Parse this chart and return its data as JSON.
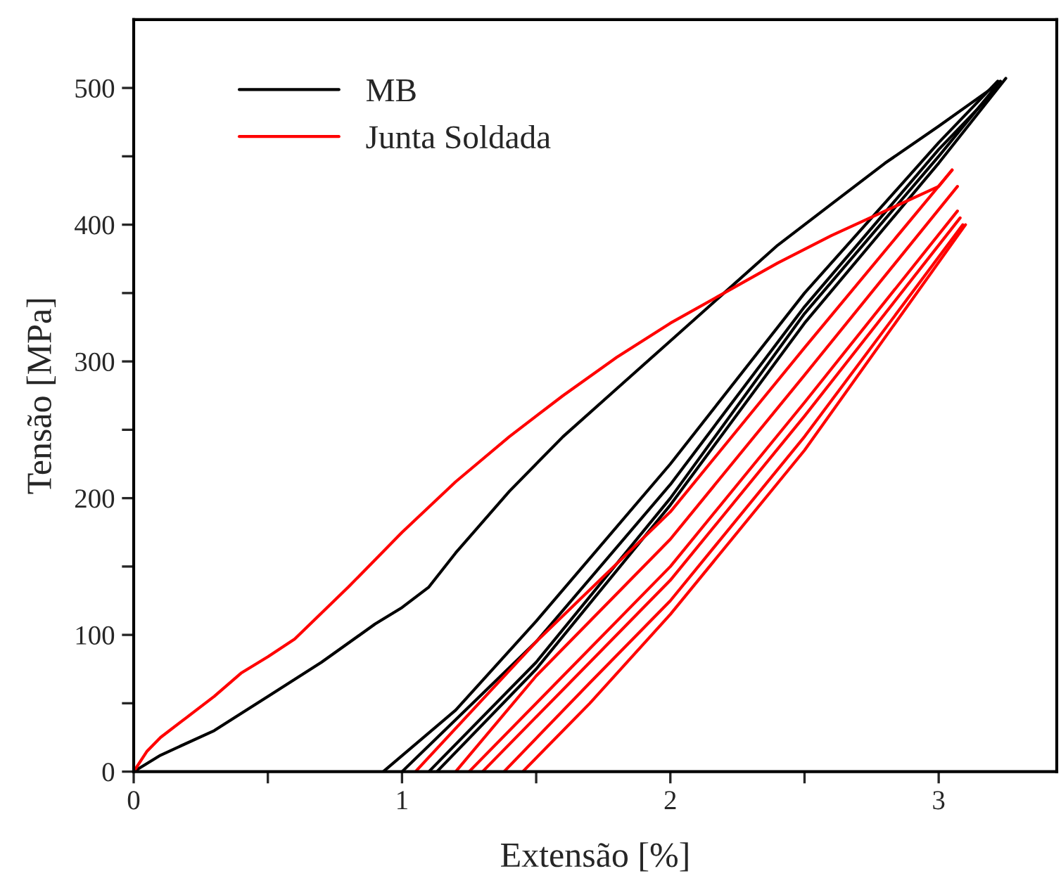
{
  "chart_data": {
    "type": "line",
    "xlabel": "Extensão [%]",
    "ylabel": "Tensão [MPa]",
    "xlim": [
      0,
      3.44
    ],
    "ylim": [
      0,
      550
    ],
    "xticks": [
      0,
      {
        "value": 0.5,
        "label": null
      },
      1,
      {
        "value": 1.5,
        "label": null
      },
      2,
      {
        "value": 2.5,
        "label": null
      },
      3
    ],
    "yticks": [
      0,
      {
        "value": 50,
        "label": null
      },
      100,
      {
        "value": 150,
        "label": null
      },
      200,
      {
        "value": 250,
        "label": null
      },
      300,
      {
        "value": 350,
        "label": null
      },
      400,
      {
        "value": 450,
        "label": null
      },
      500
    ],
    "grid": false,
    "legend": "top left",
    "marker": "none",
    "line_style": "solid",
    "series": [
      {
        "name": "MB",
        "color": "#000000",
        "x": [
          0,
          0.1,
          0.3,
          0.5,
          0.7,
          0.9,
          1.0,
          1.1,
          1.2,
          1.4,
          1.6,
          1.8,
          2.0,
          2.2,
          2.4,
          2.6,
          2.8,
          3.0,
          3.2
        ],
        "values": [
          0,
          12,
          30,
          55,
          80,
          108,
          120,
          135,
          160,
          205,
          245,
          280,
          315,
          350,
          385,
          415,
          445,
          472,
          500
        ]
      },
      {
        "color": "#000000",
        "x": [
          0.93,
          1.2,
          1.5,
          2.0,
          2.5,
          3.0,
          3.22
        ],
        "values": [
          0,
          45,
          110,
          225,
          350,
          460,
          505
        ]
      },
      {
        "color": "#000000",
        "x": [
          1.0,
          1.5,
          2.0,
          2.5,
          3.0,
          3.22
        ],
        "values": [
          0,
          95,
          210,
          340,
          455,
          500
        ]
      },
      {
        "color": "#000000",
        "x": [
          1.1,
          1.5,
          2.0,
          2.5,
          3.0,
          3.23
        ],
        "values": [
          0,
          80,
          200,
          335,
          450,
          505
        ]
      },
      {
        "color": "#000000",
        "x": [
          1.13,
          1.5,
          2.0,
          2.5,
          3.0,
          3.25
        ],
        "values": [
          0,
          75,
          195,
          328,
          445,
          507
        ]
      },
      {
        "name": "Junta Soldada",
        "color": "#ff0000",
        "x": [
          0,
          0.05,
          0.1,
          0.2,
          0.3,
          0.4,
          0.5,
          0.6,
          0.8,
          1.0,
          1.2,
          1.4,
          1.6,
          1.8,
          2.0,
          2.2,
          2.4,
          2.6,
          2.8,
          3.0,
          3.05
        ],
        "values": [
          0,
          15,
          25,
          40,
          55,
          72,
          84,
          97,
          135,
          175,
          212,
          245,
          275,
          303,
          328,
          350,
          372,
          392,
          410,
          428,
          440
        ]
      },
      {
        "color": "#ff0000",
        "x": [
          1.05,
          1.5,
          2.0,
          2.5,
          3.05
        ],
        "values": [
          0,
          95,
          190,
          310,
          440
        ]
      },
      {
        "color": "#ff0000",
        "x": [
          1.2,
          1.5,
          2.0,
          2.5,
          3.07
        ],
        "values": [
          0,
          70,
          170,
          290,
          428
        ]
      },
      {
        "color": "#ff0000",
        "x": [
          1.25,
          1.6,
          2.0,
          2.5,
          3.07
        ],
        "values": [
          0,
          70,
          150,
          270,
          410
        ]
      },
      {
        "color": "#ff0000",
        "x": [
          1.3,
          1.6,
          2.0,
          2.5,
          3.08
        ],
        "values": [
          0,
          60,
          140,
          260,
          405
        ]
      },
      {
        "color": "#ff0000",
        "x": [
          1.38,
          1.7,
          2.0,
          2.5,
          3.09
        ],
        "values": [
          0,
          65,
          125,
          245,
          400
        ]
      },
      {
        "color": "#ff0000",
        "x": [
          1.45,
          1.7,
          2.0,
          2.5,
          3.1
        ],
        "values": [
          0,
          50,
          115,
          235,
          400
        ]
      }
    ]
  }
}
